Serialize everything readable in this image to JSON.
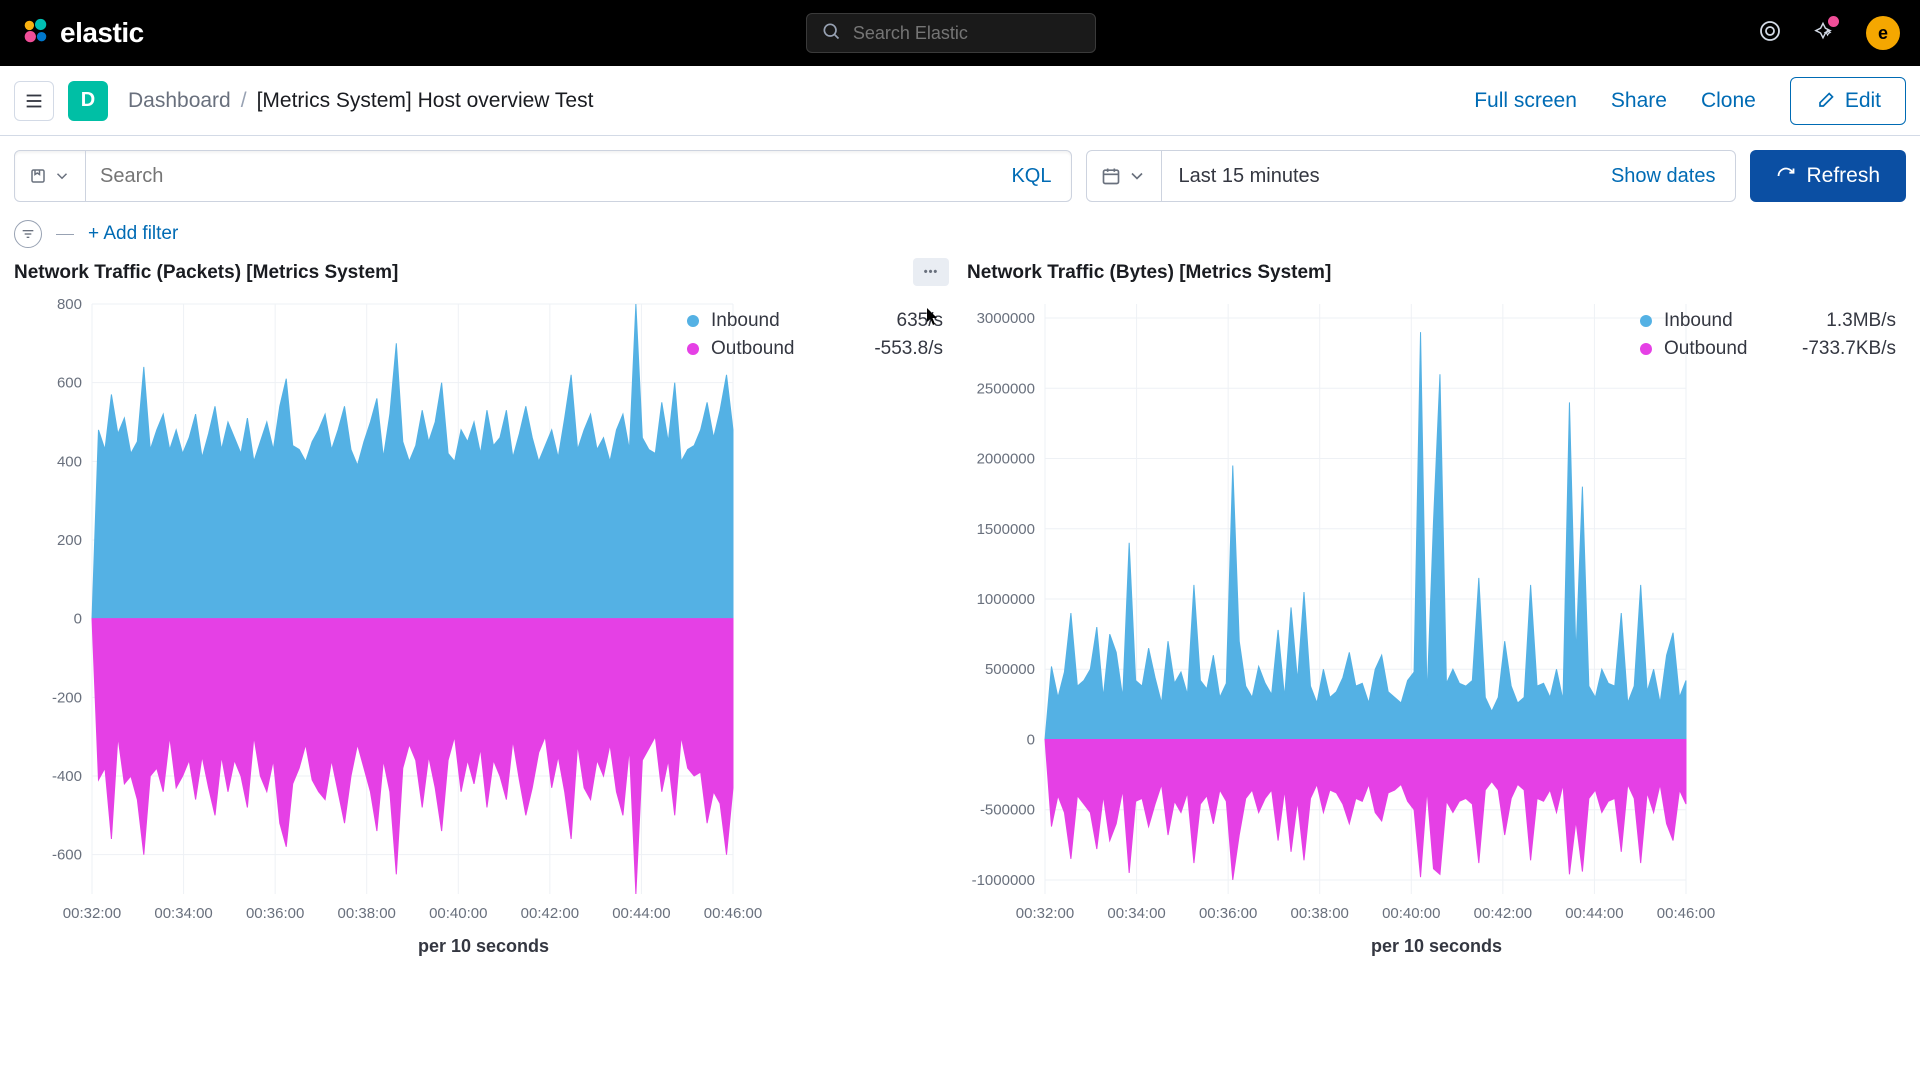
{
  "colors": {
    "inbound": "#54b1e4",
    "outbound": "#e540e5",
    "grid": "#eef1f5",
    "axis_text": "#69707d",
    "panel_title": "#1a1c21",
    "link": "#006bb4",
    "refresh_bg": "#0b4fa3",
    "header_bg": "#000000",
    "avatar_bg": "#f5a700",
    "notif_dot": "#f04e98",
    "d_badge": "#00bfa5"
  },
  "header": {
    "logo_text": "elastic",
    "search_placeholder": "Search Elastic",
    "avatar_initial": "e"
  },
  "breadcrumb": {
    "badge": "D",
    "section": "Dashboard",
    "title": "[Metrics System] Host overview Test",
    "actions": {
      "fullscreen": "Full screen",
      "share": "Share",
      "clone": "Clone",
      "edit": "Edit"
    }
  },
  "query": {
    "placeholder": "Search",
    "language": "KQL",
    "time_range": "Last 15 minutes",
    "show_dates": "Show dates",
    "refresh": "Refresh",
    "add_filter": "+ Add filter"
  },
  "panelA": {
    "title": "Network Traffic (Packets) [Metrics System]",
    "type": "area",
    "x_axis_label": "per 10 seconds",
    "x_ticks": [
      "00:32:00",
      "00:34:00",
      "00:36:00",
      "00:38:00",
      "00:40:00",
      "00:42:00",
      "00:44:00",
      "00:46:00"
    ],
    "y_ticks": [
      -600,
      -400,
      -200,
      0,
      200,
      400,
      600,
      800
    ],
    "ylim": [
      -700,
      800
    ],
    "legend": [
      {
        "label": "Inbound",
        "value": "635/s",
        "color": "#54b1e4"
      },
      {
        "label": "Outbound",
        "value": "-553.8/s",
        "color": "#e540e5"
      }
    ],
    "inbound": [
      0,
      480,
      430,
      570,
      470,
      510,
      420,
      450,
      640,
      430,
      480,
      520,
      430,
      480,
      420,
      460,
      520,
      410,
      470,
      540,
      430,
      500,
      460,
      420,
      510,
      400,
      450,
      500,
      430,
      540,
      610,
      440,
      430,
      400,
      450,
      480,
      520,
      430,
      480,
      540,
      430,
      390,
      450,
      500,
      560,
      410,
      520,
      700,
      450,
      400,
      440,
      530,
      450,
      500,
      600,
      420,
      400,
      480,
      450,
      500,
      420,
      530,
      440,
      460,
      530,
      410,
      470,
      540,
      460,
      400,
      440,
      480,
      410,
      510,
      620,
      430,
      480,
      520,
      430,
      460,
      400,
      480,
      520,
      430,
      800,
      460,
      430,
      420,
      550,
      450,
      600,
      400,
      430,
      440,
      480,
      550,
      460,
      530,
      620,
      480
    ],
    "outbound": [
      0,
      -410,
      -380,
      -560,
      -300,
      -420,
      -400,
      -460,
      -600,
      -400,
      -380,
      -440,
      -300,
      -430,
      -400,
      -360,
      -460,
      -350,
      -430,
      -500,
      -350,
      -440,
      -360,
      -400,
      -480,
      -300,
      -400,
      -440,
      -360,
      -520,
      -580,
      -420,
      -380,
      -320,
      -410,
      -440,
      -460,
      -360,
      -440,
      -520,
      -400,
      -320,
      -380,
      -440,
      -540,
      -360,
      -440,
      -650,
      -380,
      -320,
      -360,
      -480,
      -350,
      -430,
      -540,
      -360,
      -300,
      -440,
      -360,
      -420,
      -330,
      -480,
      -360,
      -400,
      -460,
      -310,
      -410,
      -500,
      -430,
      -340,
      -300,
      -430,
      -350,
      -440,
      -560,
      -320,
      -430,
      -460,
      -360,
      -400,
      -320,
      -440,
      -500,
      -330,
      -700,
      -360,
      -330,
      -300,
      -440,
      -360,
      -500,
      -300,
      -380,
      -400,
      -390,
      -520,
      -440,
      -470,
      -600,
      -430
    ]
  },
  "panelB": {
    "title": "Network Traffic (Bytes) [Metrics System]",
    "type": "area",
    "x_axis_label": "per 10 seconds",
    "x_ticks": [
      "00:32:00",
      "00:34:00",
      "00:36:00",
      "00:38:00",
      "00:40:00",
      "00:42:00",
      "00:44:00",
      "00:46:00"
    ],
    "y_ticks": [
      -1000000,
      -500000,
      0,
      500000,
      1000000,
      1500000,
      2000000,
      2500000,
      3000000
    ],
    "ylim": [
      -1100000,
      3100000
    ],
    "legend": [
      {
        "label": "Inbound",
        "value": "1.3MB/s",
        "color": "#54b1e4"
      },
      {
        "label": "Outbound",
        "value": "-733.7KB/s",
        "color": "#e540e5"
      }
    ],
    "inbound": [
      0,
      520000,
      300000,
      480000,
      900000,
      380000,
      420000,
      500000,
      800000,
      300000,
      750000,
      620000,
      300000,
      1400000,
      420000,
      380000,
      650000,
      440000,
      260000,
      700000,
      400000,
      480000,
      320000,
      1100000,
      420000,
      360000,
      600000,
      300000,
      400000,
      1950000,
      700000,
      380000,
      300000,
      520000,
      400000,
      320000,
      780000,
      300000,
      940000,
      420000,
      1050000,
      380000,
      260000,
      500000,
      300000,
      340000,
      440000,
      620000,
      380000,
      400000,
      260000,
      500000,
      600000,
      340000,
      300000,
      260000,
      420000,
      480000,
      2900000,
      300000,
      1550000,
      2600000,
      400000,
      500000,
      400000,
      380000,
      420000,
      1150000,
      300000,
      200000,
      300000,
      700000,
      380000,
      260000,
      300000,
      1100000,
      380000,
      400000,
      300000,
      500000,
      280000,
      2400000,
      600000,
      1800000,
      380000,
      300000,
      500000,
      400000,
      380000,
      900000,
      260000,
      380000,
      1100000,
      340000,
      500000,
      260000,
      600000,
      760000,
      300000,
      420000
    ],
    "outbound": [
      0,
      -620000,
      -400000,
      -520000,
      -850000,
      -400000,
      -460000,
      -520000,
      -780000,
      -400000,
      -720000,
      -600000,
      -360000,
      -950000,
      -440000,
      -420000,
      -620000,
      -460000,
      -320000,
      -680000,
      -440000,
      -520000,
      -380000,
      -880000,
      -460000,
      -400000,
      -600000,
      -360000,
      -440000,
      -1000000,
      -680000,
      -420000,
      -360000,
      -520000,
      -420000,
      -360000,
      -720000,
      -360000,
      -800000,
      -440000,
      -860000,
      -420000,
      -320000,
      -520000,
      -360000,
      -380000,
      -460000,
      -600000,
      -420000,
      -440000,
      -320000,
      -520000,
      -580000,
      -380000,
      -360000,
      -320000,
      -440000,
      -500000,
      -980000,
      -360000,
      -920000,
      -960000,
      -440000,
      -520000,
      -440000,
      -420000,
      -460000,
      -880000,
      -360000,
      -300000,
      -360000,
      -680000,
      -420000,
      -320000,
      -360000,
      -860000,
      -420000,
      -440000,
      -360000,
      -520000,
      -320000,
      -960000,
      -580000,
      -940000,
      -420000,
      -360000,
      -520000,
      -440000,
      -420000,
      -800000,
      -320000,
      -420000,
      -880000,
      -380000,
      -520000,
      -320000,
      -600000,
      -720000,
      -360000,
      -460000
    ]
  }
}
